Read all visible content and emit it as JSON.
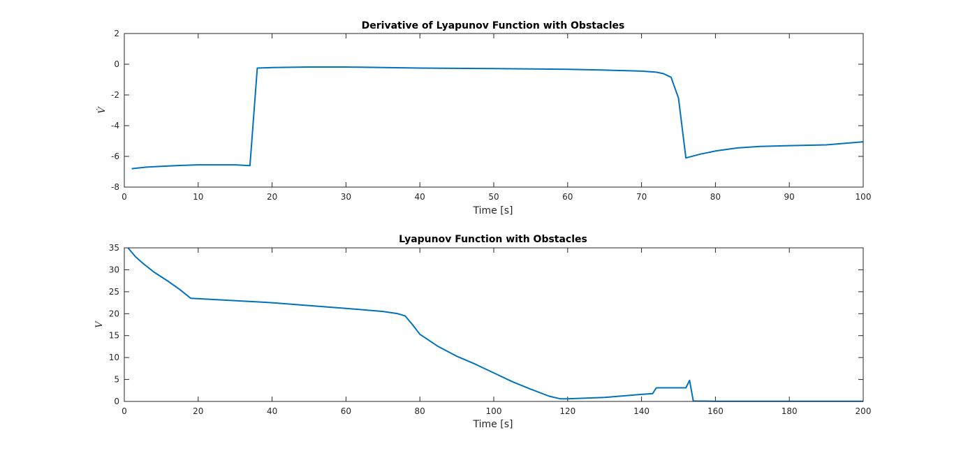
{
  "chart_data": [
    {
      "type": "line",
      "title": "Derivative of Lyapunov Function with Obstacles",
      "xlabel": "Time [s]",
      "ylabel": "V̇",
      "xlim": [
        0,
        100
      ],
      "ylim": [
        -8,
        2
      ],
      "xticks": [
        "0",
        "10",
        "20",
        "30",
        "40",
        "50",
        "60",
        "70",
        "80",
        "90",
        "100"
      ],
      "yticks": [
        "-8",
        "-6",
        "-4",
        "-2",
        "0",
        "2"
      ],
      "grid": false,
      "line_color": "#0072bd",
      "series": [
        {
          "x": [
            1,
            3,
            5,
            7,
            10,
            13,
            15,
            17,
            18,
            20,
            25,
            30,
            40,
            50,
            60,
            65,
            70,
            72,
            73,
            74,
            75,
            76,
            78,
            80,
            83,
            86,
            90,
            95,
            100
          ],
          "y": [
            -6.8,
            -6.7,
            -6.65,
            -6.6,
            -6.55,
            -6.55,
            -6.55,
            -6.6,
            -0.25,
            -0.22,
            -0.18,
            -0.18,
            -0.25,
            -0.28,
            -0.33,
            -0.38,
            -0.45,
            -0.52,
            -0.62,
            -0.85,
            -2.2,
            -6.1,
            -5.85,
            -5.65,
            -5.45,
            -5.35,
            -5.3,
            -5.25,
            -5.05
          ]
        }
      ]
    },
    {
      "type": "line",
      "title": "Lyapunov Function with Obstacles",
      "xlabel": "Time [s]",
      "ylabel": "V",
      "xlim": [
        0,
        200
      ],
      "ylim": [
        0,
        35
      ],
      "xticks": [
        "0",
        "20",
        "40",
        "60",
        "80",
        "100",
        "120",
        "140",
        "160",
        "180",
        "200"
      ],
      "yticks": [
        "0",
        "5",
        "10",
        "15",
        "20",
        "25",
        "30",
        "35"
      ],
      "grid": false,
      "line_color": "#0072bd",
      "series": [
        {
          "x": [
            1,
            3,
            5,
            8,
            12,
            15,
            18,
            25,
            40,
            60,
            70,
            74,
            76,
            78,
            80,
            85,
            90,
            95,
            100,
            105,
            110,
            115,
            118,
            120,
            130,
            140,
            143,
            144,
            150,
            152,
            153,
            154,
            160,
            180,
            200
          ],
          "y": [
            35,
            33,
            31.5,
            29.5,
            27.3,
            25.5,
            23.5,
            23.2,
            22.5,
            21.2,
            20.5,
            20.0,
            19.5,
            17.5,
            15.3,
            12.5,
            10.3,
            8.5,
            6.5,
            4.5,
            2.8,
            1.2,
            0.6,
            0.6,
            0.9,
            1.6,
            1.8,
            3.1,
            3.1,
            3.1,
            4.8,
            0.1,
            0.05,
            0.05,
            0.05
          ]
        }
      ]
    }
  ]
}
